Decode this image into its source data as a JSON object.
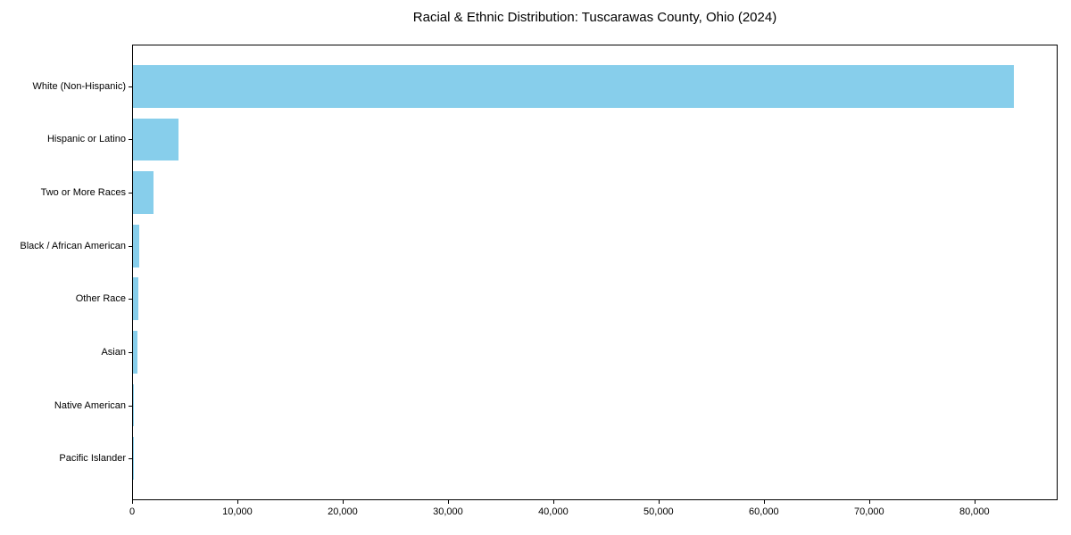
{
  "chart_data": {
    "type": "bar",
    "orientation": "horizontal",
    "title": "Racial & Ethnic Distribution: Tuscarawas County, Ohio (2024)",
    "categories": [
      "White (Non-Hispanic)",
      "Hispanic or Latino",
      "Two or More Races",
      "Black / African American",
      "Other Race",
      "Asian",
      "Native American",
      "Pacific Islander"
    ],
    "values": [
      83700,
      4300,
      1930,
      620,
      510,
      420,
      100,
      25
    ],
    "xlabel": "",
    "ylabel": "",
    "xlim": [
      0,
      87900
    ],
    "xticks": [
      0,
      10000,
      20000,
      30000,
      40000,
      50000,
      60000,
      70000,
      80000
    ],
    "grid": false,
    "legend": false,
    "colors": {
      "bar": "#87CEEB",
      "spine": "#000000",
      "text": "#000000",
      "background": "#ffffff"
    }
  }
}
